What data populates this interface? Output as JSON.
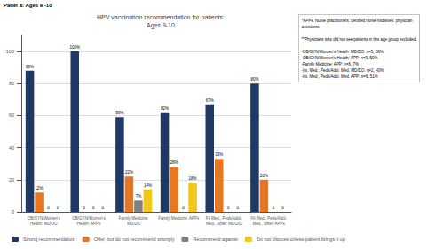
{
  "chart_data": {
    "type": "bar",
    "title": "HPV vaccination recommendation for patients:\nAges 9-10",
    "annotations": [
      "Panel a: Ages 9 -10",
      "*APPs: Nurse practitioners, certified nurse midwives, physician\nassistants\n\n**Physicians who did not see patients in this age group excluded.\n\n-OB/GYN/Women's Health: MD/DO: n=5, 38%\n-OB/GYN/Women's Health: APP: n=9, 50%\n-Family Medicine: APP: n=6, 7%\n-Int. Med., Peds/Adol. Med. MD/DO: n=2, 40%\n-Int. Med., Peds/Adol. Med. APP: n=6, 51%"
    ],
    "categories": [
      "OB/GYN/Women's\nHealth: MD/DO",
      "OB/GYN/Women's\nHealth: APPs",
      "Family Medicine:\nMD/DO",
      "Family Medicine: APPs",
      "Fit Med., Peds/Adol.\nMed., other: MD/DO",
      "Fit Med., Peds/Adol.\nMed., other: APPs"
    ],
    "series": [
      {
        "name": "Strong recommendation",
        "color": "#1F3864",
        "values": [
          88,
          100,
          59,
          62,
          67,
          80
        ],
        "value_labels": [
          "88%",
          "100%",
          "59%",
          "62%",
          "67%",
          "80%"
        ]
      },
      {
        "name": "Offer, but do not recommend strongly",
        "color": "#E87722",
        "values": [
          12,
          0,
          22,
          28,
          33,
          20
        ],
        "value_labels": [
          "12%",
          "0",
          "22%",
          "28%",
          "33%",
          "20%"
        ]
      },
      {
        "name": "Recommend against",
        "color": "#808080",
        "values": [
          0,
          0,
          7,
          0,
          0,
          0
        ],
        "value_labels": [
          "0",
          "0",
          "7%",
          "0",
          "0",
          "0"
        ]
      },
      {
        "name": "Do not discuss unless patient brings it up",
        "color": "#F5C518",
        "values": [
          0,
          0,
          14,
          18,
          0,
          0
        ],
        "value_labels": [
          "0",
          "0",
          "14%",
          "18%",
          "0",
          "0"
        ]
      }
    ],
    "ylim": [
      0,
      110
    ],
    "yticks": [
      0,
      20,
      40,
      60,
      80,
      100
    ],
    "grid": true,
    "legend": "lower left",
    "data_labels": true
  }
}
